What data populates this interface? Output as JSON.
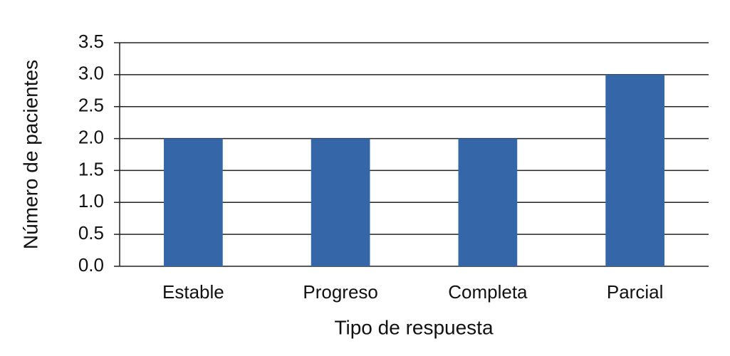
{
  "chart_data": {
    "type": "bar",
    "x_label": "Tipo de respuesta",
    "y_label": "Número de pacientes",
    "categories": [
      "Estable",
      "Progreso",
      "Completa",
      "Parcial"
    ],
    "values": [
      2,
      2,
      2,
      3
    ],
    "color": "#3566a8",
    "ylim": [
      0,
      3.5
    ],
    "yticks": [
      {
        "value": 0,
        "label": "0.0"
      },
      0.5,
      {
        "value": 1,
        "label": "1.0"
      },
      1.5,
      {
        "value": 2,
        "label": "2.0"
      },
      2.5,
      {
        "value": 3,
        "label": "3.0"
      },
      3.5
    ],
    "grid": true
  }
}
